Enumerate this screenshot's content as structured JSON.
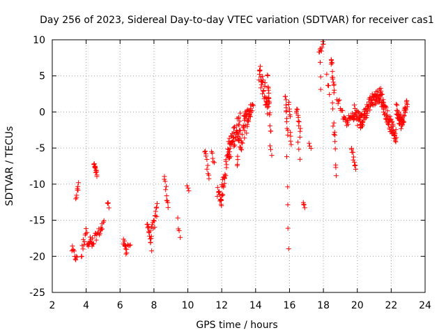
{
  "chart_data": {
    "type": "scatter",
    "title": "Day 256 of 2023, Sidereal Day-to-day VTEC variation (SDTVAR) for receiver cas1",
    "xlabel": "GPS time / hours",
    "ylabel": "SDTVAR / TECUs",
    "xlim": [
      2,
      24
    ],
    "ylim": [
      -25,
      10
    ],
    "xticks": [
      2,
      4,
      6,
      8,
      10,
      12,
      14,
      16,
      18,
      20,
      22,
      24
    ],
    "xtick_labels": [
      "2",
      "4",
      "6",
      "8",
      "10",
      "12",
      "14",
      "16",
      "18",
      "20",
      "22",
      "24"
    ],
    "yticks": [
      -25,
      -20,
      -15,
      -10,
      -5,
      0,
      5,
      10
    ],
    "ytick_labels": [
      "-25",
      "-20",
      "-15",
      "-10",
      "-5",
      "0",
      "5",
      "10"
    ],
    "grid": true,
    "marker": "plus",
    "color": "#ff0000",
    "series": [
      {
        "name": "SDTVAR",
        "segments": [
          {
            "x0": 3.15,
            "x1": 3.45,
            "y0": -19.0,
            "y1": -20.5,
            "n": 10,
            "jitter": 0.6
          },
          {
            "x0": 3.4,
            "x1": 3.55,
            "y0": -12.0,
            "y1": -9.8,
            "n": 8,
            "jitter": 0.6
          },
          {
            "x0": 3.7,
            "x1": 4.0,
            "y0": -20.0,
            "y1": -16.0,
            "n": 10,
            "jitter": 0.8
          },
          {
            "x0": 4.05,
            "x1": 4.45,
            "y0": -17.5,
            "y1": -18.5,
            "n": 16,
            "jitter": 0.9
          },
          {
            "x0": 4.45,
            "x1": 4.65,
            "y0": -7.2,
            "y1": -8.8,
            "n": 14,
            "jitter": 0.4
          },
          {
            "x0": 4.5,
            "x1": 4.95,
            "y0": -17.5,
            "y1": -16.0,
            "n": 14,
            "jitter": 0.6
          },
          {
            "x0": 4.95,
            "x1": 5.05,
            "y0": -15.5,
            "y1": -15.2,
            "n": 3,
            "jitter": 0.2
          },
          {
            "x0": 5.25,
            "x1": 5.35,
            "y0": -12.5,
            "y1": -13.0,
            "n": 4,
            "jitter": 0.3
          },
          {
            "x0": 6.2,
            "x1": 6.4,
            "y0": -17.5,
            "y1": -19.8,
            "n": 12,
            "jitter": 0.6
          },
          {
            "x0": 6.45,
            "x1": 6.6,
            "y0": -18.5,
            "y1": -18.5,
            "n": 4,
            "jitter": 0.2
          },
          {
            "x0": 7.6,
            "x1": 7.85,
            "y0": -15.0,
            "y1": -18.5,
            "n": 14,
            "jitter": 0.8
          },
          {
            "x0": 7.85,
            "x1": 8.2,
            "y0": -17.0,
            "y1": -13.5,
            "n": 16,
            "jitter": 1.0
          },
          {
            "x0": 8.6,
            "x1": 8.85,
            "y0": -9.0,
            "y1": -13.0,
            "n": 10,
            "jitter": 0.7
          },
          {
            "x0": 9.4,
            "x1": 9.55,
            "y0": -15.0,
            "y1": -17.5,
            "n": 4,
            "jitter": 0.4
          },
          {
            "x0": 9.95,
            "x1": 10.05,
            "y0": -10.0,
            "y1": -11.0,
            "n": 3,
            "jitter": 0.3
          },
          {
            "x0": 11.0,
            "x1": 11.25,
            "y0": -5.0,
            "y1": -9.5,
            "n": 10,
            "jitter": 0.7
          },
          {
            "x0": 11.4,
            "x1": 11.55,
            "y0": -5.5,
            "y1": -7.0,
            "n": 5,
            "jitter": 0.4
          },
          {
            "x0": 11.75,
            "x1": 12.0,
            "y0": -11.0,
            "y1": -12.5,
            "n": 12,
            "jitter": 0.7
          },
          {
            "x0": 11.95,
            "x1": 12.45,
            "y0": -12.0,
            "y1": -4.5,
            "n": 30,
            "jitter": 1.2
          },
          {
            "x0": 12.4,
            "x1": 13.1,
            "y0": -5.5,
            "y1": -1.0,
            "n": 50,
            "jitter": 1.6
          },
          {
            "x0": 12.9,
            "x1": 13.7,
            "y0": -6.0,
            "y1": 0.5,
            "n": 40,
            "jitter": 1.5
          },
          {
            "x0": 13.3,
            "x1": 13.85,
            "y0": -1.0,
            "y1": 0.5,
            "n": 20,
            "jitter": 0.8
          },
          {
            "x0": 14.2,
            "x1": 14.8,
            "y0": 5.5,
            "y1": 0.5,
            "n": 40,
            "jitter": 1.6
          },
          {
            "x0": 14.7,
            "x1": 14.9,
            "y0": 6.0,
            "y1": -3.0,
            "n": 12,
            "jitter": 1.0
          },
          {
            "x0": 14.85,
            "x1": 14.95,
            "y0": -4.5,
            "y1": -6.0,
            "n": 3,
            "jitter": 0.3
          },
          {
            "x0": 15.75,
            "x1": 15.9,
            "y0": 2.5,
            "y1": -3.0,
            "n": 12,
            "jitter": 0.8
          },
          {
            "x0": 15.85,
            "x1": 15.95,
            "y0": -6.5,
            "y1": -19.5,
            "n": 5,
            "jitter": 0.8
          },
          {
            "x0": 15.95,
            "x1": 16.1,
            "y0": 2.0,
            "y1": -4.0,
            "n": 10,
            "jitter": 0.9
          },
          {
            "x0": 16.4,
            "x1": 16.65,
            "y0": 1.0,
            "y1": -3.0,
            "n": 12,
            "jitter": 0.9
          },
          {
            "x0": 16.5,
            "x1": 16.6,
            "y0": -4.0,
            "y1": -6.5,
            "n": 3,
            "jitter": 0.3
          },
          {
            "x0": 16.8,
            "x1": 16.9,
            "y0": -12.5,
            "y1": -13.0,
            "n": 4,
            "jitter": 0.3
          },
          {
            "x0": 17.15,
            "x1": 17.25,
            "y0": -4.5,
            "y1": -5.0,
            "n": 3,
            "jitter": 0.2
          },
          {
            "x0": 17.75,
            "x1": 18.0,
            "y0": 8.0,
            "y1": 9.8,
            "n": 10,
            "jitter": 0.6
          },
          {
            "x0": 17.8,
            "x1": 17.85,
            "y0": 6.5,
            "y1": 3.0,
            "n": 3,
            "jitter": 0.4
          },
          {
            "x0": 18.2,
            "x1": 18.35,
            "y0": 5.0,
            "y1": 2.5,
            "n": 4,
            "jitter": 0.5
          },
          {
            "x0": 18.45,
            "x1": 18.65,
            "y0": 7.5,
            "y1": 3.0,
            "n": 14,
            "jitter": 0.8
          },
          {
            "x0": 18.55,
            "x1": 18.75,
            "y0": 0.5,
            "y1": -8.0,
            "n": 12,
            "jitter": 1.0
          },
          {
            "x0": 18.8,
            "x1": 19.3,
            "y0": 2.0,
            "y1": -1.5,
            "n": 12,
            "jitter": 0.7
          },
          {
            "x0": 19.3,
            "x1": 19.8,
            "y0": -1.5,
            "y1": -0.5,
            "n": 18,
            "jitter": 0.6
          },
          {
            "x0": 19.65,
            "x1": 19.9,
            "y0": -5.0,
            "y1": -8.0,
            "n": 10,
            "jitter": 0.6
          },
          {
            "x0": 19.8,
            "x1": 20.3,
            "y0": 0.0,
            "y1": -1.5,
            "n": 30,
            "jitter": 1.2
          },
          {
            "x0": 20.2,
            "x1": 20.8,
            "y0": -1.5,
            "y1": 1.5,
            "n": 40,
            "jitter": 1.0
          },
          {
            "x0": 20.8,
            "x1": 21.4,
            "y0": 1.5,
            "y1": 2.5,
            "n": 40,
            "jitter": 0.9
          },
          {
            "x0": 21.4,
            "x1": 21.9,
            "y0": 2.0,
            "y1": -1.5,
            "n": 35,
            "jitter": 1.0
          },
          {
            "x0": 21.9,
            "x1": 22.3,
            "y0": -1.5,
            "y1": -3.5,
            "n": 30,
            "jitter": 1.0
          },
          {
            "x0": 22.3,
            "x1": 22.6,
            "y0": 0.5,
            "y1": -1.5,
            "n": 25,
            "jitter": 1.0
          },
          {
            "x0": 22.6,
            "x1": 22.95,
            "y0": -2.0,
            "y1": 1.5,
            "n": 25,
            "jitter": 0.9
          }
        ]
      }
    ]
  }
}
